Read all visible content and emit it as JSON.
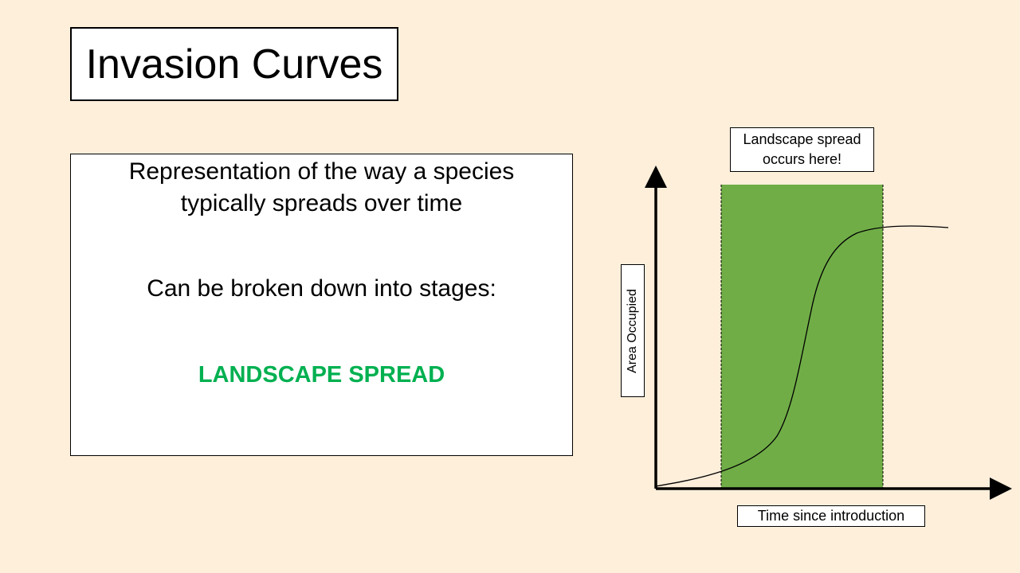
{
  "slide": {
    "title": "Invasion Curves",
    "body": {
      "line1": "Representation of the way a species",
      "line2": "typically spreads over time",
      "line3": "Can be broken down into stages:",
      "highlight": "LANDSCAPE SPREAD"
    }
  },
  "diagram": {
    "callout": {
      "line1": "Landscape spread",
      "line2": "occurs here!"
    },
    "x_axis_label": "Time since introduction",
    "y_axis_label": "Area Occupied",
    "colors": {
      "background": "#FEEFDB",
      "highlight_region": "#70AD47",
      "highlight_text": "#00B050",
      "axis": "#000000"
    }
  }
}
